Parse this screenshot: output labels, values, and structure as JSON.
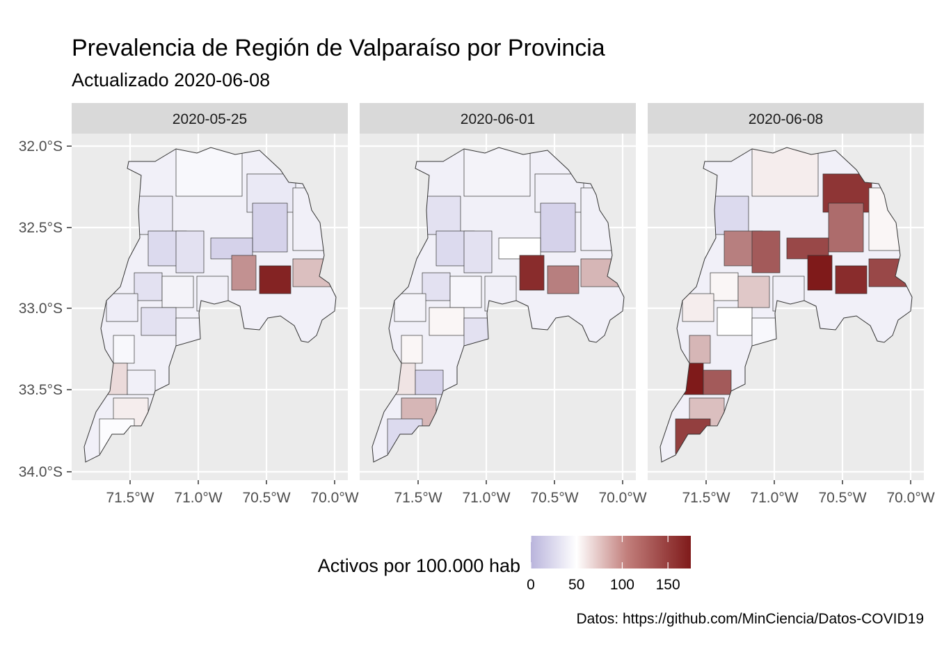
{
  "title": "Prevalencia de Región de Valparaíso por Provincia",
  "subtitle": "Actualizado 2020-06-08",
  "caption": "Datos: https://github.com/MinCiencia/Datos-COVID19",
  "colors": {
    "panel_bg": "#ebebeb",
    "strip_bg": "#d9d9d9",
    "grid": "#ffffff",
    "low": "#b9b4dc",
    "mid": "#ffffff",
    "high": "#7f1a1a",
    "border": "#333333"
  },
  "chart_data": {
    "type": "choropleth map",
    "facets": [
      "2020-05-25",
      "2020-06-01",
      "2020-06-08"
    ],
    "y_ticks": [
      "32.0°S",
      "32.5°S",
      "33.0°S",
      "33.5°S",
      "34.0°S"
    ],
    "x_ticks": [
      "71.5°W",
      "71.0°W",
      "70.5°W",
      "70.0°W"
    ],
    "legend": {
      "title": "Activos por 100.000 hab",
      "ticks": [
        "0",
        "50",
        "100",
        "150"
      ],
      "tick_values": [
        0,
        50,
        100,
        150
      ],
      "range": [
        0,
        175
      ],
      "midpoint": 50
    }
  }
}
